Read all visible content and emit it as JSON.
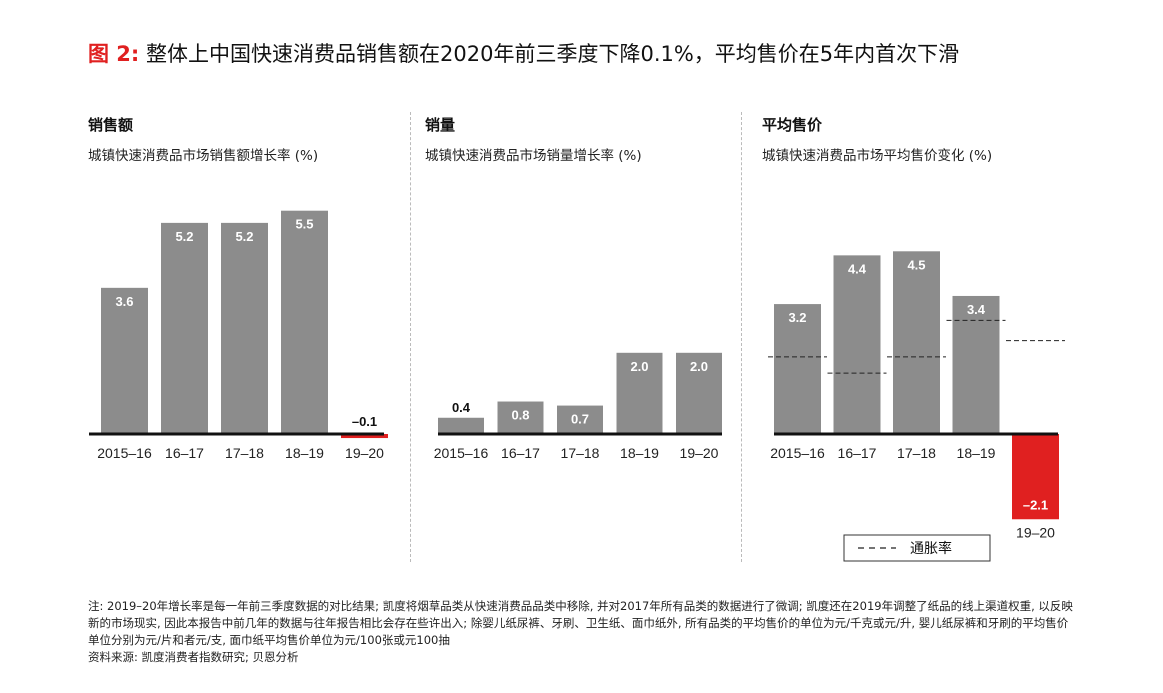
{
  "title": {
    "prefix": "图 2:",
    "text": "整体上中国快速消费品销售额在2020年前三季度下降0.1%，平均售价在5年内首次下滑"
  },
  "colors": {
    "bar": "#8c8c8c",
    "negative": "#e02020",
    "accent": "#e02020",
    "axis": "#111111"
  },
  "chart_data": [
    {
      "type": "bar",
      "title": "销售额",
      "subtitle": "城镇快速消费品市场销售额增长率 (%)",
      "categories": [
        "2015–16",
        "16–17",
        "17–18",
        "18–19",
        "19–20"
      ],
      "values": [
        3.6,
        5.2,
        5.2,
        5.5,
        -0.1
      ],
      "labels": [
        "3.6",
        "5.2",
        "5.2",
        "5.5",
        "–0.1"
      ],
      "ylim": [
        -2.5,
        6
      ]
    },
    {
      "type": "bar",
      "title": "销量",
      "subtitle": "城镇快速消费品市场销量增长率 (%)",
      "categories": [
        "2015–16",
        "16–17",
        "17–18",
        "18–19",
        "19–20"
      ],
      "values": [
        0.4,
        0.8,
        0.7,
        2.0,
        2.0
      ],
      "labels": [
        "0.4",
        "0.8",
        "0.7",
        "2.0",
        "2.0"
      ],
      "ylim": [
        -2.5,
        6
      ]
    },
    {
      "type": "bar",
      "title": "平均售价",
      "subtitle": "城镇快速消费品市场平均售价变化 (%)",
      "categories": [
        "2015–16",
        "16–17",
        "17–18",
        "18–19",
        "19–20"
      ],
      "values": [
        3.2,
        4.4,
        4.5,
        3.4,
        -2.1
      ],
      "labels": [
        "3.2",
        "4.4",
        "4.5",
        "3.4",
        "–2.1"
      ],
      "inflation": [
        1.9,
        1.5,
        1.9,
        2.8,
        2.3
      ],
      "legend": {
        "label": "通胀率",
        "placement": "bottom-right"
      },
      "ylim": [
        -2.5,
        6
      ]
    }
  ],
  "footnote": {
    "lines": [
      "注: 2019–20年增长率是每一年前三季度数据的对比结果; 凯度将烟草品类从快速消费品品类中移除, 并对2017年所有品类的数据进行了微调; 凯度还在2019年调整了纸品的线上渠道权重, 以反映新的市场现实, 因此本报告中前几年的数据与往年报告相比会存在些许出入; 除婴儿纸尿裤、牙刷、卫生纸、面巾纸外, 所有品类的平均售价的单位为元/千克或元/升, 婴儿纸尿裤和牙刷的平均售价单位分别为元/片和者元/支, 面巾纸平均售价单位为元/100张或元100抽",
      "资料来源: 凯度消费者指数研究; 贝恩分析"
    ]
  }
}
